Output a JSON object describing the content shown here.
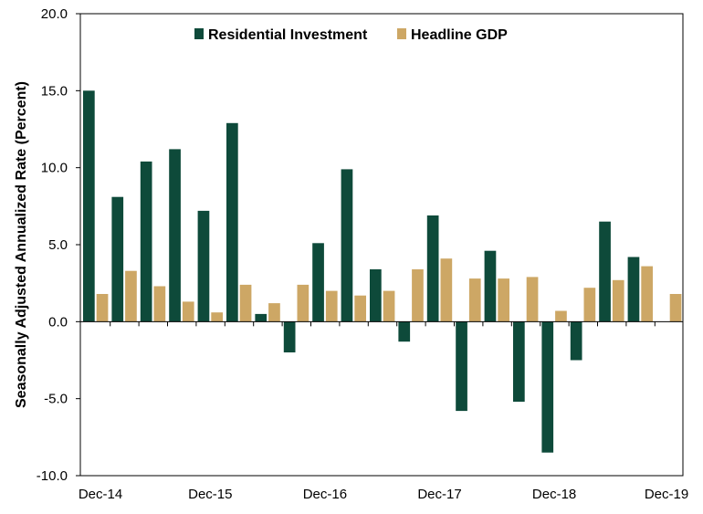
{
  "chart_data": {
    "type": "bar",
    "title": "",
    "xlabel": "",
    "ylabel": "Seasonally Adjusted Annualized Rate (Percent)",
    "ylim": [
      -10,
      20
    ],
    "yticks": [
      "20.0",
      "15.0",
      "10.0",
      "5.0",
      "0.0",
      "-5.0",
      "-10.0"
    ],
    "ytick_values": [
      20,
      15,
      10,
      5,
      0,
      -5,
      -10
    ],
    "x_tick_labels": [
      "Dec-14",
      "Dec-15",
      "Dec-16",
      "Dec-17",
      "Dec-18",
      "Dec-19"
    ],
    "x_tick_positions": [
      0,
      4,
      8,
      12,
      16,
      20
    ],
    "legend_position": "top-center",
    "grid": false,
    "categories": [
      "Dec-14",
      "Mar-15",
      "Jun-15",
      "Sep-15",
      "Dec-15",
      "Mar-16",
      "Jun-16",
      "Sep-16",
      "Dec-16",
      "Mar-17",
      "Jun-17",
      "Sep-17",
      "Dec-17",
      "Mar-18",
      "Jun-18",
      "Sep-18",
      "Dec-18",
      "Mar-19",
      "Jun-19",
      "Sep-19",
      "Dec-19"
    ],
    "series": [
      {
        "name": "Residential Investment",
        "color": "#0e4a3a",
        "values": [
          15.0,
          8.1,
          10.4,
          11.2,
          7.2,
          12.9,
          0.5,
          -2.0,
          5.1,
          9.9,
          3.4,
          -1.3,
          6.9,
          -5.8,
          4.6,
          -5.2,
          -8.5,
          -2.5,
          6.5,
          4.2,
          null
        ]
      },
      {
        "name": "Headline GDP",
        "color": "#cda765",
        "values": [
          1.8,
          3.3,
          2.3,
          1.3,
          0.6,
          2.4,
          1.2,
          2.4,
          2.0,
          1.7,
          2.0,
          3.4,
          4.1,
          2.8,
          2.8,
          2.9,
          0.7,
          2.2,
          2.7,
          3.6,
          1.8
        ]
      }
    ]
  }
}
